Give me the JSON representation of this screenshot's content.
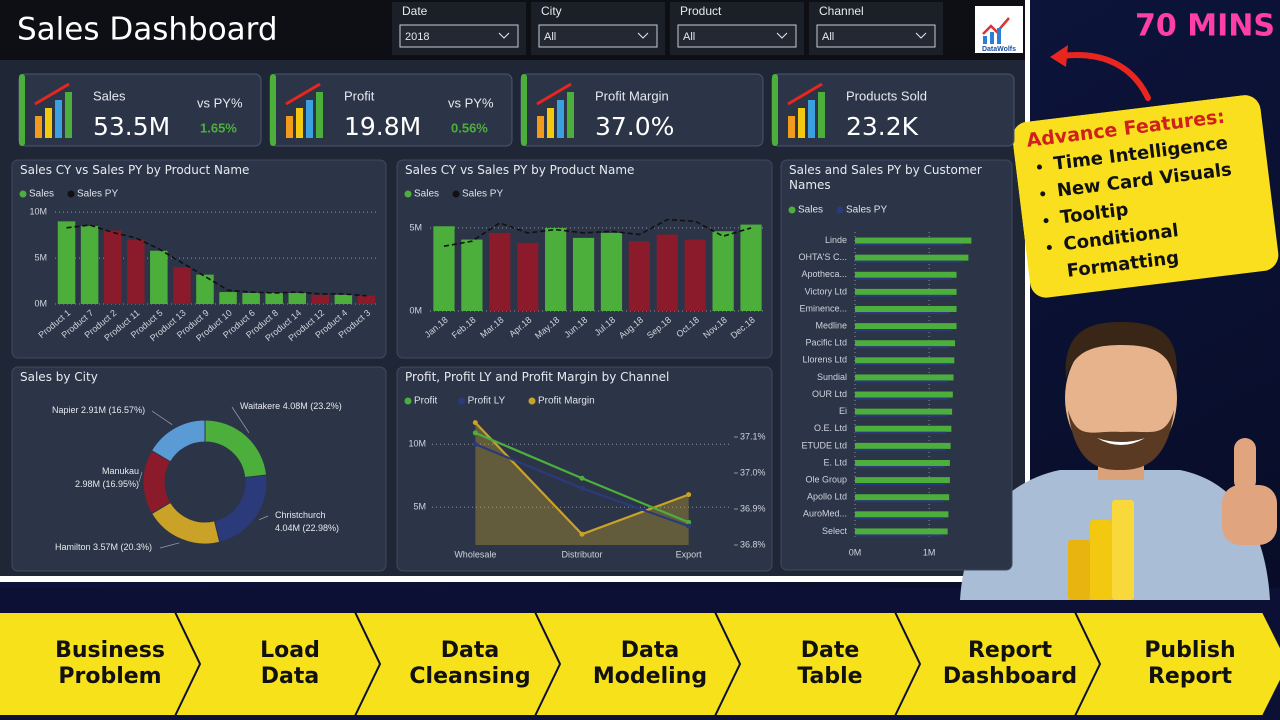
{
  "header": {
    "title": "Sales Dashboard",
    "logo": "DataWolfs"
  },
  "filters": [
    {
      "label": "Date",
      "value": "2018"
    },
    {
      "label": "City",
      "value": "All"
    },
    {
      "label": "Product",
      "value": "All"
    },
    {
      "label": "Channel",
      "value": "All"
    }
  ],
  "kpis": [
    {
      "label": "Sales",
      "value": "53.5M",
      "vs_label": "vs PY%",
      "vs": "1.65%"
    },
    {
      "label": "Profit",
      "value": "19.8M",
      "vs_label": "vs PY%",
      "vs": "0.56%"
    },
    {
      "label": "Profit Margin",
      "value": "37.0%"
    },
    {
      "label": "Products Sold",
      "value": "23.2K"
    }
  ],
  "chart_data": [
    {
      "type": "bar",
      "title": "Sales CY vs Sales PY by Product Name",
      "categories": [
        "Product 1",
        "Product 7",
        "Product 2",
        "Product 11",
        "Product 5",
        "Product 13",
        "Product 9",
        "Product 10",
        "Product 6",
        "Product 8",
        "Product 14",
        "Product 12",
        "Product 4",
        "Product 3"
      ],
      "series": [
        {
          "name": "Sales",
          "color": "#4caf3c",
          "colors": [
            "#4caf3c",
            "#4caf3c",
            "#8b1a2a",
            "#8b1a2a",
            "#4caf3c",
            "#8b1a2a",
            "#4caf3c",
            "#4caf3c",
            "#4caf3c",
            "#4caf3c",
            "#4caf3c",
            "#8b1a2a",
            "#4caf3c",
            "#8b1a2a"
          ],
          "values": [
            9,
            8.5,
            8,
            7,
            5.8,
            4,
            3.2,
            1.3,
            1.2,
            1.2,
            1.2,
            1,
            1,
            0.9
          ]
        },
        {
          "name": "Sales PY",
          "color": "#111111",
          "style": "line",
          "values": [
            8.3,
            8.6,
            7.8,
            7.2,
            6,
            4.5,
            3,
            1.5,
            1.3,
            1.2,
            1.3,
            1.1,
            1.1,
            0.9
          ]
        }
      ],
      "ylim": [
        0,
        11
      ],
      "yticks": [
        {
          "value": 0,
          "label": "0M"
        },
        {
          "value": 5,
          "label": "5M"
        },
        {
          "value": 10,
          "label": "10M"
        }
      ],
      "grid": true
    },
    {
      "type": "bar",
      "title": "Sales CY vs Sales PY by Product Name",
      "categories": [
        "Jan.18",
        "Feb.18",
        "Mar.18",
        "Apr.18",
        "May.18",
        "Jun.18",
        "Jul.18",
        "Aug.18",
        "Sep.18",
        "Oct.18",
        "Nov.18",
        "Dec.18"
      ],
      "series": [
        {
          "name": "Sales",
          "color": "#4caf3c",
          "colors": [
            "#4caf3c",
            "#4caf3c",
            "#8b1a2a",
            "#8b1a2a",
            "#4caf3c",
            "#4caf3c",
            "#4caf3c",
            "#8b1a2a",
            "#8b1a2a",
            "#8b1a2a",
            "#4caf3c",
            "#4caf3c"
          ],
          "values": [
            5.1,
            4.3,
            4.7,
            4.1,
            5,
            4.4,
            4.7,
            4.2,
            4.6,
            4.3,
            4.8,
            5.2
          ]
        },
        {
          "name": "Sales PY",
          "color": "#111111",
          "style": "line",
          "values": [
            3.9,
            4.2,
            5.3,
            4.7,
            4.9,
            4.7,
            4.8,
            4.6,
            5.5,
            5.4,
            4.5,
            5
          ]
        }
      ],
      "ylim": [
        0,
        6.5
      ],
      "yticks": [
        {
          "value": 0,
          "label": "0M"
        },
        {
          "value": 5,
          "label": "5M"
        }
      ],
      "grid": true
    },
    {
      "type": "pie",
      "title": "Sales by City",
      "donut": true,
      "categories": [
        "Waitakere",
        "Christchurch",
        "Hamilton",
        "Manukau",
        "Napier"
      ],
      "values": [
        4.08,
        4.04,
        3.57,
        2.98,
        2.91
      ],
      "value_labels": [
        "4.08M (23.2%)",
        "4.04M (22.98%)",
        "3.57M (20.3%)",
        "2.98M (16.95%)",
        "2.91M (16.57%)"
      ],
      "colors": [
        "#4caf3c",
        "#2b3a7a",
        "#c9a227",
        "#8b1a2a",
        "#5b9bd5"
      ]
    },
    {
      "type": "line",
      "title": "Profit, Profit LY and Profit Margin by Channel",
      "categories": [
        "Wholesale",
        "Distributor",
        "Export"
      ],
      "series": [
        {
          "name": "Profit",
          "color": "#4caf3c",
          "values": [
            10.9,
            7.3,
            3.8
          ]
        },
        {
          "name": "Profit LY",
          "color": "#2b3a7a",
          "values": [
            10,
            6.5,
            3.5
          ]
        },
        {
          "name": "Profit Margin",
          "color": "#c9a227",
          "axis": "y2",
          "values": [
            37.14,
            36.83,
            36.94
          ]
        }
      ],
      "ylim": [
        2,
        12
      ],
      "yticks": [
        {
          "value": 5,
          "label": "5M"
        },
        {
          "value": 10,
          "label": "10M"
        }
      ],
      "y2lim": [
        36.8,
        37.15
      ],
      "y2ticks": [
        {
          "value": 36.8,
          "label": "36.8%"
        },
        {
          "value": 36.9,
          "label": "36.9%"
        },
        {
          "value": 37.0,
          "label": "37.0%"
        },
        {
          "value": 37.1,
          "label": "37.1%"
        }
      ],
      "grid": true
    },
    {
      "type": "barh",
      "title": "Sales and Sales PY by Customer Names",
      "categories": [
        "Linde",
        "OHTA'S C...",
        "Apotheca...",
        "Victory Ltd",
        "Eminence...",
        "Medline",
        "Pacific Ltd",
        "Llorens Ltd",
        "Sundial",
        "OUR Ltd",
        "Ei",
        "O.E. Ltd",
        "ETUDE Ltd",
        "E. Ltd",
        "Ole Group",
        "Apollo Ltd",
        "AuroMed...",
        "Select"
      ],
      "series": [
        {
          "name": "Sales",
          "color": "#4caf3c",
          "values": [
            1.57,
            1.53,
            1.37,
            1.37,
            1.37,
            1.37,
            1.35,
            1.34,
            1.33,
            1.32,
            1.31,
            1.3,
            1.29,
            1.28,
            1.28,
            1.27,
            1.26,
            1.25
          ]
        },
        {
          "name": "Sales PY",
          "color": "#2b3a7a",
          "values": [
            1.45,
            1.44,
            1.3,
            1.31,
            1.28,
            1.3,
            1.27,
            1.28,
            1.25,
            1.26,
            1.24,
            1.23,
            1.22,
            1.21,
            1.22,
            1.2,
            1.19,
            1.18
          ]
        }
      ],
      "xlim": [
        0,
        1.7
      ],
      "xticks": [
        {
          "value": 0,
          "label": "0M"
        },
        {
          "value": 1,
          "label": "1M"
        }
      ],
      "grid": true
    }
  ],
  "promo": {
    "duration": "70 MINS",
    "heading": "Advance Features:",
    "items": [
      "Time Intelligence",
      "New Card Visuals",
      "Tooltip",
      "Conditional Formatting"
    ]
  },
  "steps": [
    [
      "Business",
      "Problem"
    ],
    [
      "Load",
      "Data"
    ],
    [
      "Data",
      "Cleansing"
    ],
    [
      "Data",
      "Modeling"
    ],
    [
      "Date",
      "Table"
    ],
    [
      "Report",
      "Dashboard"
    ],
    [
      "Publish",
      "Report"
    ]
  ]
}
